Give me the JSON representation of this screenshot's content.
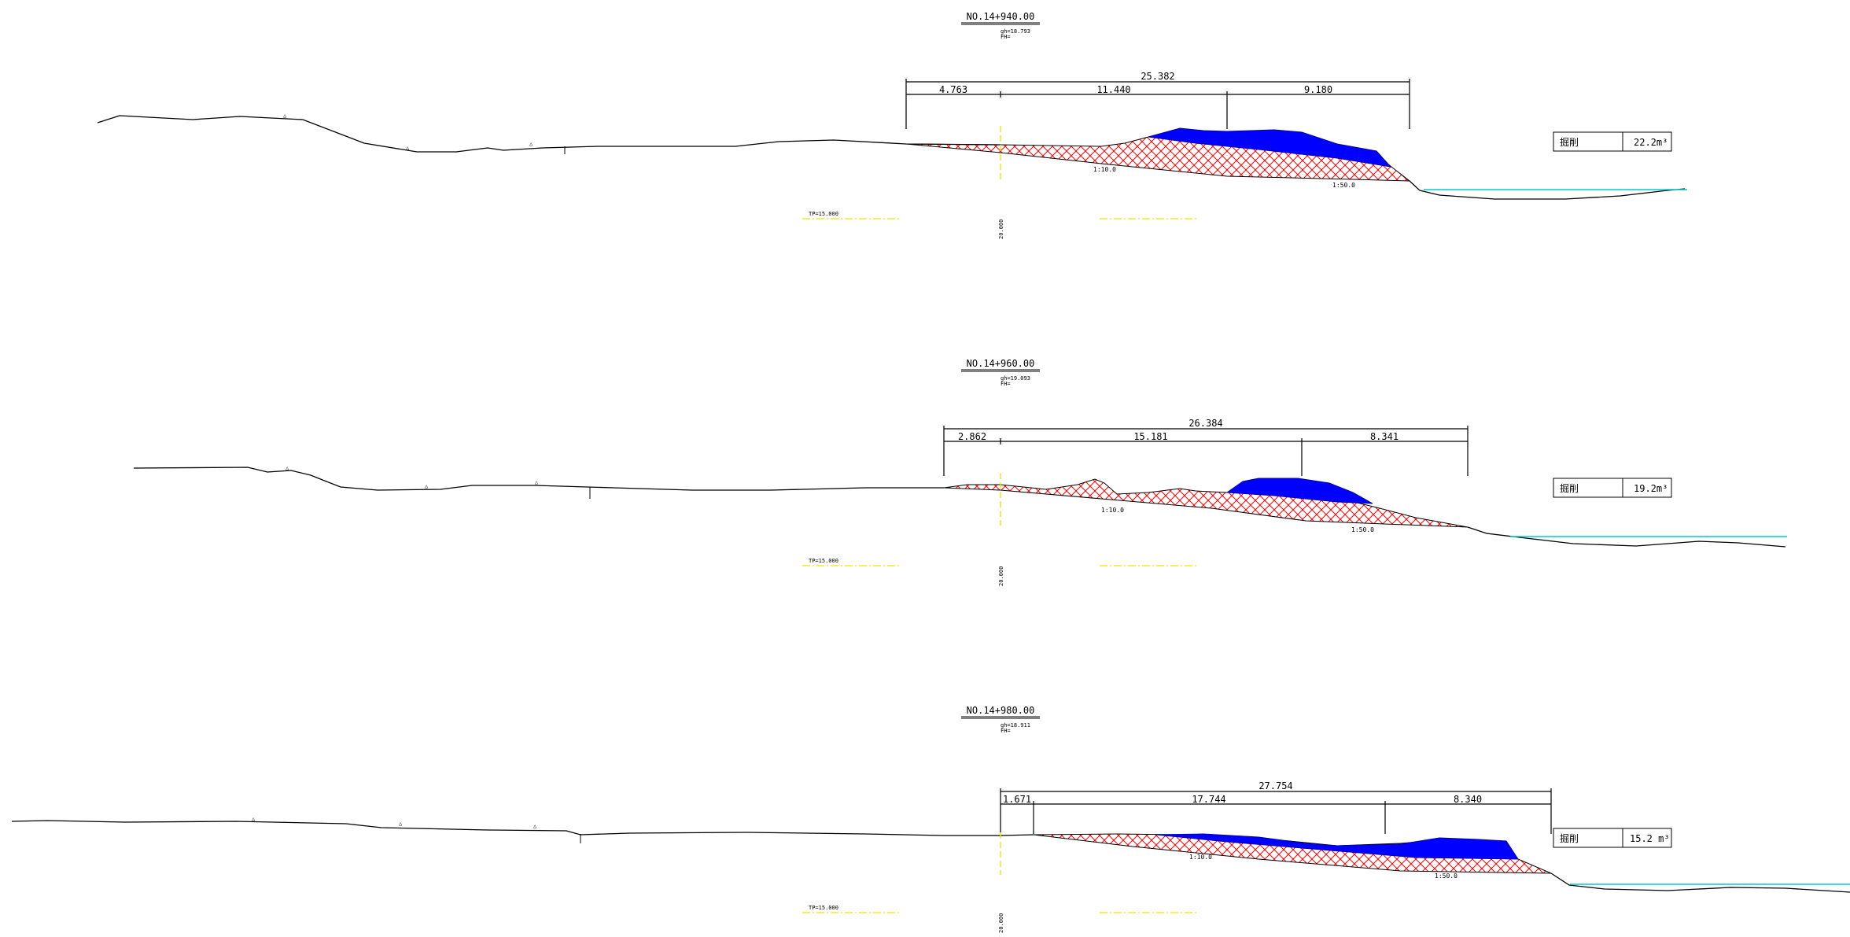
{
  "colors": {
    "ground": "#000000",
    "fill_blue": "#0000ff",
    "hatch_red": "#ff0000",
    "axis_yellow": "#e6e600",
    "water_cyan": "#00cccc"
  },
  "sections": [
    {
      "id": "s1",
      "station": "NO.14+940.00",
      "gh": "gh=18.793",
      "fh": "FH=",
      "total_width": "25.382",
      "widths": [
        "4.763",
        "11.440",
        "9.180"
      ],
      "slope_left": "1:10.0",
      "slope_right": "1:50.0",
      "tp": "TP=15.000",
      "axis_elev": "20.000",
      "volume_label": "掘削",
      "volume_value": "22.2m³"
    },
    {
      "id": "s2",
      "station": "NO.14+960.00",
      "gh": "gh=19.093",
      "fh": "FH=",
      "total_width": "26.384",
      "widths": [
        "2.862",
        "15.181",
        "8.341"
      ],
      "slope_left": "1:10.0",
      "slope_right": "1:50.0",
      "tp": "TP=15.000",
      "axis_elev": "20.000",
      "volume_label": "掘削",
      "volume_value": "19.2m³"
    },
    {
      "id": "s3",
      "station": "NO.14+980.00",
      "gh": "gh=18.911",
      "fh": "FH=",
      "total_width": "27.754",
      "widths": [
        "1.671",
        "17.744",
        "8.340"
      ],
      "slope_left": "1:10.0",
      "slope_right": "1:50.0",
      "tp": "TP=15.000",
      "axis_elev": "20.000",
      "volume_label": "掘削",
      "volume_value": "15.2 m³"
    }
  ]
}
